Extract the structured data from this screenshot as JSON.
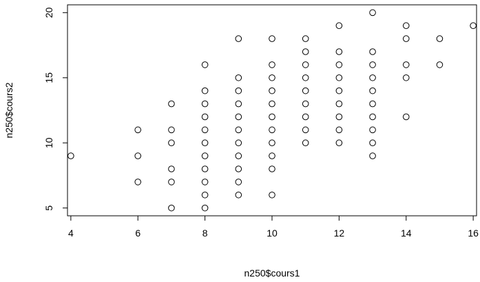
{
  "chart_data": {
    "type": "scatter",
    "title": "",
    "xlabel": "n250$cours1",
    "ylabel": "n250$cours2",
    "xlim": [
      3.9,
      16.1
    ],
    "ylim": [
      4.4,
      20.6
    ],
    "xticks": [
      4,
      6,
      8,
      10,
      12,
      14,
      16
    ],
    "yticks": [
      5,
      10,
      15,
      20
    ],
    "grid": false,
    "marker": "open-circle",
    "points": [
      [
        4,
        9
      ],
      [
        6,
        7
      ],
      [
        6,
        9
      ],
      [
        6,
        11
      ],
      [
        7,
        5
      ],
      [
        7,
        7
      ],
      [
        7,
        8
      ],
      [
        7,
        10
      ],
      [
        7,
        11
      ],
      [
        7,
        13
      ],
      [
        8,
        5
      ],
      [
        8,
        6
      ],
      [
        8,
        7
      ],
      [
        8,
        8
      ],
      [
        8,
        9
      ],
      [
        8,
        10
      ],
      [
        8,
        11
      ],
      [
        8,
        12
      ],
      [
        8,
        13
      ],
      [
        8,
        14
      ],
      [
        8,
        16
      ],
      [
        9,
        6
      ],
      [
        9,
        7
      ],
      [
        9,
        8
      ],
      [
        9,
        9
      ],
      [
        9,
        10
      ],
      [
        9,
        11
      ],
      [
        9,
        12
      ],
      [
        9,
        13
      ],
      [
        9,
        14
      ],
      [
        9,
        15
      ],
      [
        9,
        18
      ],
      [
        10,
        6
      ],
      [
        10,
        8
      ],
      [
        10,
        9
      ],
      [
        10,
        10
      ],
      [
        10,
        11
      ],
      [
        10,
        12
      ],
      [
        10,
        13
      ],
      [
        10,
        14
      ],
      [
        10,
        15
      ],
      [
        10,
        16
      ],
      [
        10,
        18
      ],
      [
        11,
        10
      ],
      [
        11,
        11
      ],
      [
        11,
        12
      ],
      [
        11,
        13
      ],
      [
        11,
        14
      ],
      [
        11,
        15
      ],
      [
        11,
        16
      ],
      [
        11,
        17
      ],
      [
        11,
        18
      ],
      [
        12,
        10
      ],
      [
        12,
        11
      ],
      [
        12,
        12
      ],
      [
        12,
        13
      ],
      [
        12,
        14
      ],
      [
        12,
        15
      ],
      [
        12,
        16
      ],
      [
        12,
        17
      ],
      [
        12,
        19
      ],
      [
        13,
        9
      ],
      [
        13,
        10
      ],
      [
        13,
        11
      ],
      [
        13,
        12
      ],
      [
        13,
        13
      ],
      [
        13,
        14
      ],
      [
        13,
        15
      ],
      [
        13,
        16
      ],
      [
        13,
        17
      ],
      [
        13,
        20
      ],
      [
        14,
        12
      ],
      [
        14,
        15
      ],
      [
        14,
        16
      ],
      [
        14,
        18
      ],
      [
        14,
        19
      ],
      [
        15,
        16
      ],
      [
        15,
        18
      ],
      [
        16,
        19
      ]
    ]
  }
}
